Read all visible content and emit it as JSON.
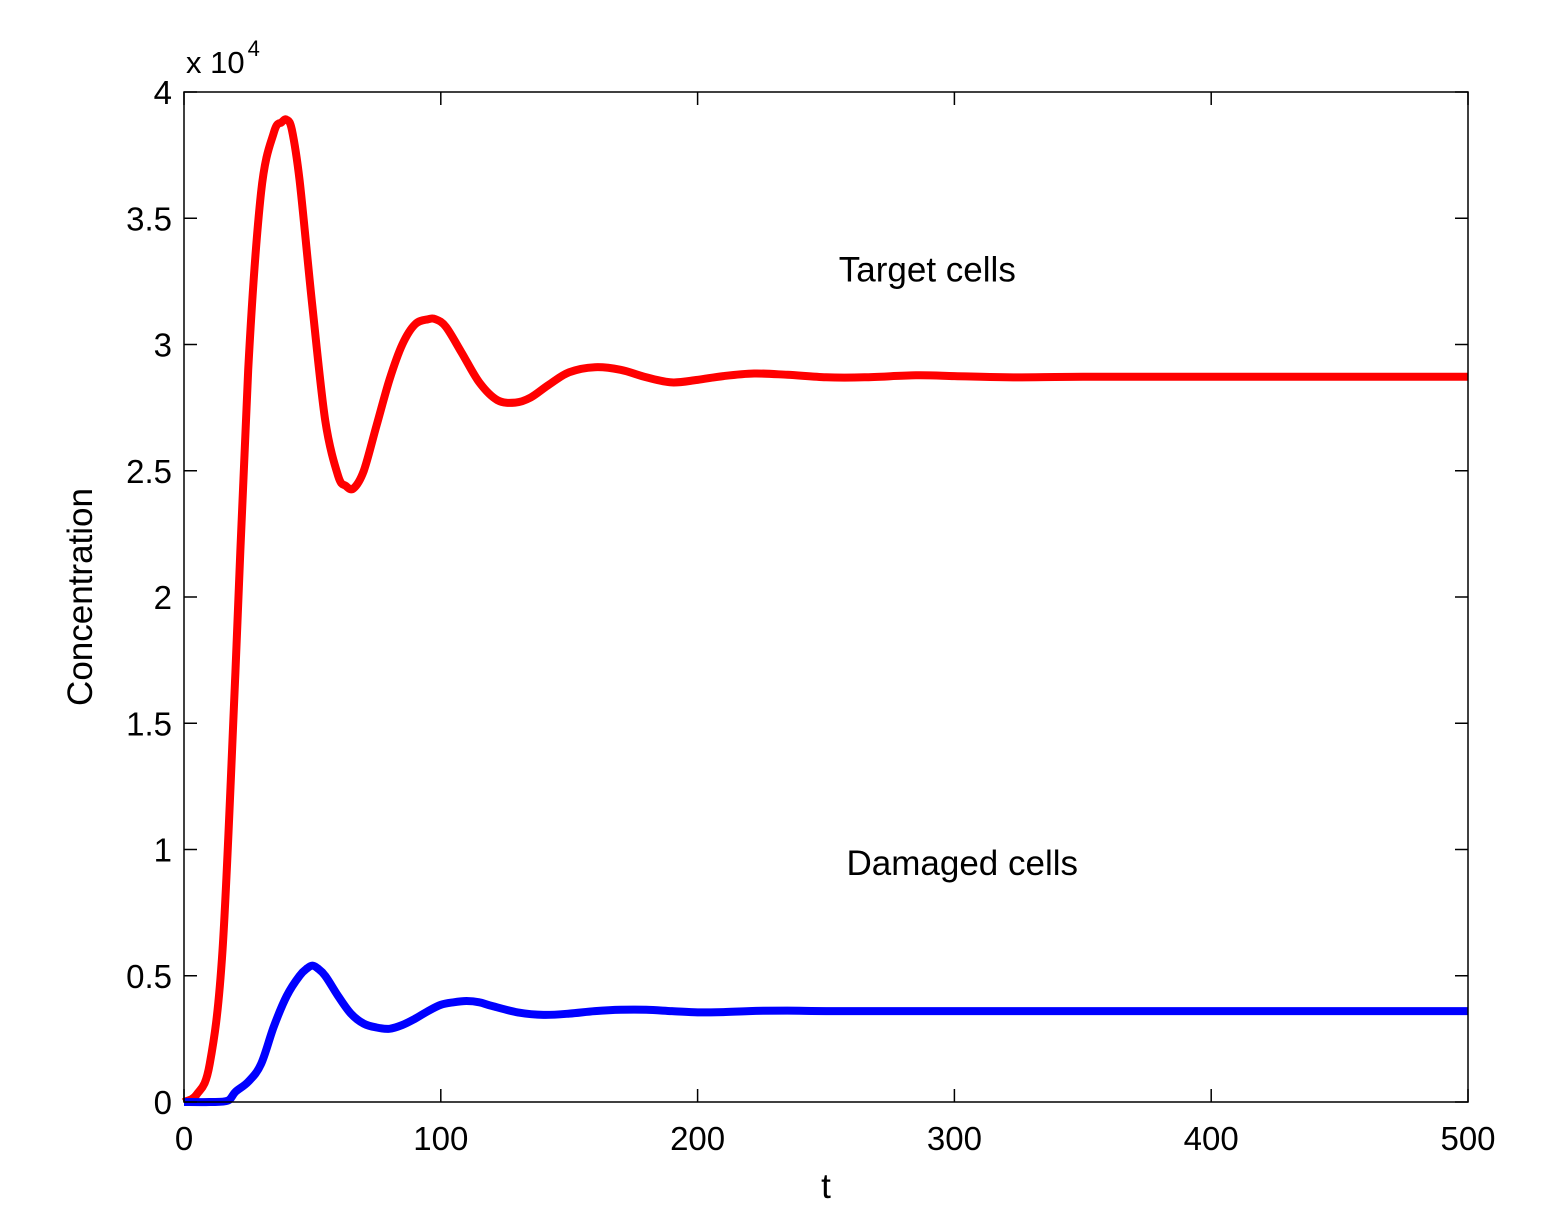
{
  "chart_data": {
    "type": "line",
    "title": "",
    "xlabel": "t",
    "ylabel": "Concentration",
    "xlim": [
      0,
      500
    ],
    "ylim": [
      0,
      40000
    ],
    "xticks": [
      0,
      100,
      200,
      300,
      400,
      500
    ],
    "xtick_labels": [
      "0",
      "100",
      "200",
      "300",
      "400",
      "500"
    ],
    "yticks": [
      0,
      5000,
      10000,
      15000,
      20000,
      25000,
      30000,
      35000,
      40000
    ],
    "ytick_labels": [
      "0",
      "0.5",
      "1",
      "1.5",
      "2",
      "2.5",
      "3",
      "3.5",
      "4"
    ],
    "y_multiplier": {
      "base": "x 10",
      "exponent": "4"
    },
    "grid": false,
    "legend": "none",
    "series": [
      {
        "color": "#ff0000",
        "label_text": "Target cells",
        "label_pos": [
          255,
          32500
        ],
        "x": [
          0,
          5,
          10,
          15,
          20,
          25,
          30,
          35,
          38,
          40,
          42,
          45,
          50,
          55,
          60,
          63,
          66,
          70,
          75,
          80,
          85,
          90,
          95,
          98,
          102,
          108,
          115,
          122,
          129,
          135,
          142,
          150,
          160,
          170,
          180,
          190,
          200,
          210,
          222,
          235,
          250,
          265,
          285,
          300,
          320,
          350,
          400,
          450,
          500
        ],
        "y": [
          0,
          300,
          1500,
          6000,
          17000,
          29000,
          36000,
          38400,
          38800,
          38900,
          38500,
          36500,
          31500,
          27000,
          24800,
          24400,
          24300,
          25000,
          26800,
          28600,
          30000,
          30800,
          31000,
          31000,
          30700,
          29700,
          28500,
          27800,
          27700,
          27900,
          28400,
          28900,
          29100,
          29000,
          28700,
          28500,
          28600,
          28750,
          28850,
          28800,
          28700,
          28700,
          28780,
          28750,
          28700,
          28720,
          28720,
          28720,
          28720
        ]
      },
      {
        "color": "#0000ff",
        "label_text": "Damaged cells",
        "label_pos": [
          258,
          9000
        ],
        "x": [
          0,
          10,
          17,
          20,
          25,
          30,
          35,
          40,
          45,
          48,
          50,
          52,
          55,
          60,
          65,
          70,
          75,
          80,
          85,
          90,
          95,
          100,
          105,
          110,
          115,
          120,
          130,
          140,
          150,
          160,
          170,
          180,
          190,
          200,
          210,
          220,
          235,
          250,
          300,
          350,
          400,
          450,
          500
        ],
        "y": [
          0,
          0,
          50,
          400,
          800,
          1500,
          3000,
          4200,
          5000,
          5300,
          5400,
          5300,
          5000,
          4200,
          3500,
          3100,
          2950,
          2900,
          3050,
          3300,
          3600,
          3850,
          3950,
          4000,
          3950,
          3800,
          3550,
          3450,
          3500,
          3600,
          3650,
          3650,
          3600,
          3550,
          3560,
          3600,
          3620,
          3600,
          3600,
          3600,
          3600,
          3600,
          3600
        ]
      }
    ]
  }
}
